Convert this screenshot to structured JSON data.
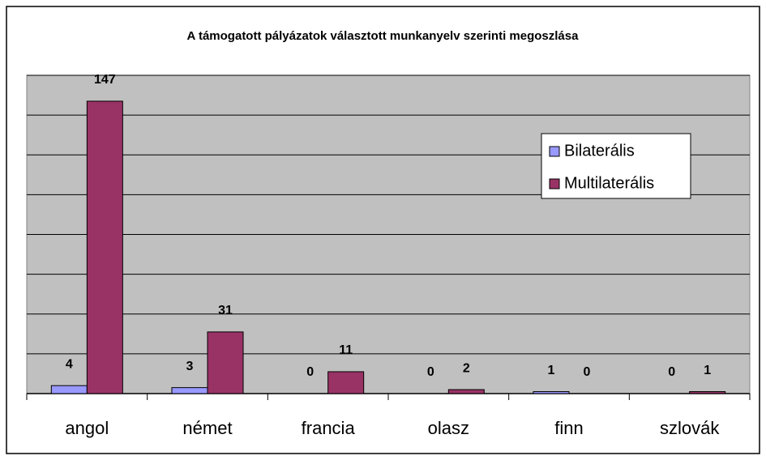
{
  "chart_data": {
    "type": "bar",
    "title": "A támogatott pályázatok választott munkanyelv szerinti megoszlása",
    "categories": [
      "angol",
      "német",
      "francia",
      "olasz",
      "finn",
      "szlovák"
    ],
    "series": [
      {
        "name": "Bilaterális",
        "color": "#9999ff",
        "values": [
          4,
          3,
          0,
          0,
          1,
          0
        ]
      },
      {
        "name": "Multilaterális",
        "color": "#993366",
        "values": [
          147,
          31,
          11,
          2,
          0,
          1
        ]
      }
    ],
    "ylim": [
      0,
      160
    ],
    "yticks": [
      0,
      20,
      40,
      60,
      80,
      100,
      120,
      140,
      160
    ],
    "grid": true,
    "legend": "right"
  }
}
